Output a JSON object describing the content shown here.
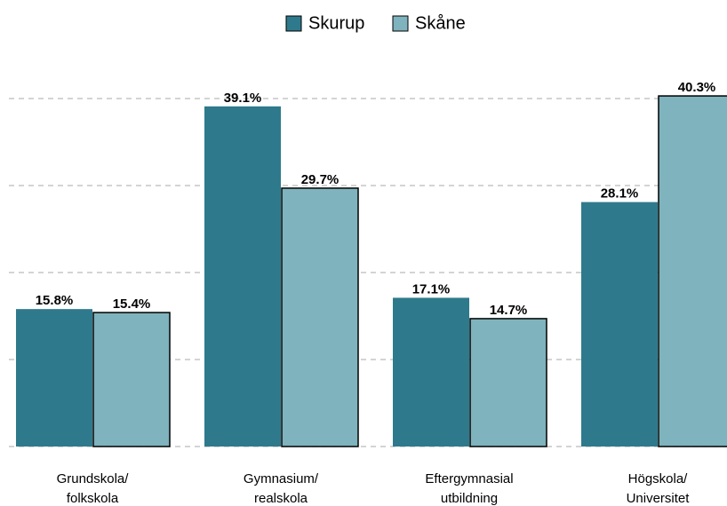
{
  "chart_data": {
    "type": "bar",
    "categories": [
      [
        "Grundskola/",
        "folkskola"
      ],
      [
        "Gymnasium/",
        "realskola"
      ],
      [
        "Eftergymnasial",
        "utbildning"
      ],
      [
        "Högskola/",
        "Universitet"
      ]
    ],
    "series": [
      {
        "name": "Skurup",
        "color": "#2e7a8c",
        "values": [
          15.8,
          39.1,
          17.1,
          28.1
        ],
        "value_labels": [
          "15.8%",
          "39.1%",
          "17.1%",
          "28.1%"
        ]
      },
      {
        "name": "Skåne",
        "color": "#7fb3bd",
        "edgecolor": "#000000",
        "values": [
          15.4,
          29.7,
          14.7,
          40.3
        ],
        "value_labels": [
          "15.4%",
          "29.7%",
          "14.7%",
          "40.3%"
        ]
      }
    ],
    "ylim": [
      0,
      45
    ],
    "yticks": [
      0,
      10,
      20,
      30,
      40
    ],
    "grid": true,
    "legend": "top"
  }
}
